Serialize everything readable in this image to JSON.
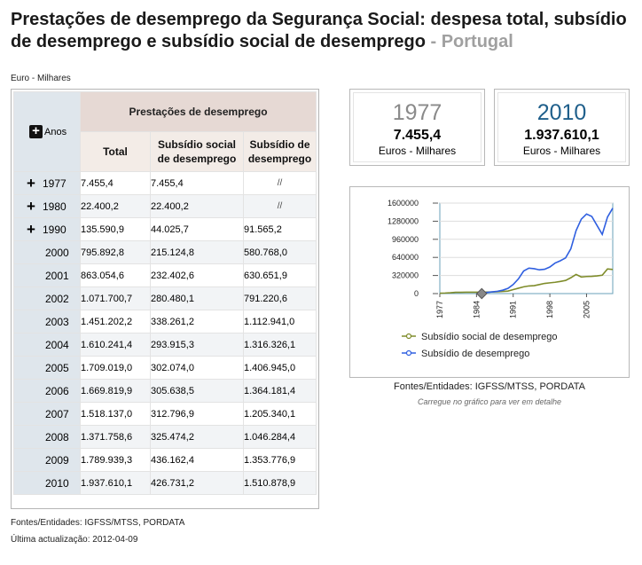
{
  "header": {
    "title": "Prestações de desemprego da Segurança Social: despesa total, subsídio de desemprego e subsídio social de desemprego",
    "separator": " - ",
    "country": "Portugal"
  },
  "unit_note": "Euro - Milhares",
  "table": {
    "years_header": "Anos",
    "group_header": "Prestações de desemprego",
    "columns": [
      "Total",
      "Subsídio social de desemprego",
      "Subsídio de desemprego"
    ],
    "rows": [
      {
        "year": "1977",
        "expandable": true,
        "total": "7.455,4",
        "social": "7.455,4",
        "subsidio": "//"
      },
      {
        "year": "1980",
        "expandable": true,
        "total": "22.400,2",
        "social": "22.400,2",
        "subsidio": "//"
      },
      {
        "year": "1990",
        "expandable": true,
        "total": "135.590,9",
        "social": "44.025,7",
        "subsidio": "91.565,2"
      },
      {
        "year": "2000",
        "expandable": false,
        "total": "795.892,8",
        "social": "215.124,8",
        "subsidio": "580.768,0"
      },
      {
        "year": "2001",
        "expandable": false,
        "total": "863.054,6",
        "social": "232.402,6",
        "subsidio": "630.651,9"
      },
      {
        "year": "2002",
        "expandable": false,
        "total": "1.071.700,7",
        "social": "280.480,1",
        "subsidio": "791.220,6"
      },
      {
        "year": "2003",
        "expandable": false,
        "total": "1.451.202,2",
        "social": "338.261,2",
        "subsidio": "1.112.941,0"
      },
      {
        "year": "2004",
        "expandable": false,
        "total": "1.610.241,4",
        "social": "293.915,3",
        "subsidio": "1.316.326,1"
      },
      {
        "year": "2005",
        "expandable": false,
        "total": "1.709.019,0",
        "social": "302.074,0",
        "subsidio": "1.406.945,0"
      },
      {
        "year": "2006",
        "expandable": false,
        "total": "1.669.819,9",
        "social": "305.638,5",
        "subsidio": "1.364.181,4"
      },
      {
        "year": "2007",
        "expandable": false,
        "total": "1.518.137,0",
        "social": "312.796,9",
        "subsidio": "1.205.340,1"
      },
      {
        "year": "2008",
        "expandable": false,
        "total": "1.371.758,6",
        "social": "325.474,2",
        "subsidio": "1.046.284,4"
      },
      {
        "year": "2009",
        "expandable": false,
        "total": "1.789.939,3",
        "social": "436.162,4",
        "subsidio": "1.353.776,9"
      },
      {
        "year": "2010",
        "expandable": false,
        "total": "1.937.610,1",
        "social": "426.731,2",
        "subsidio": "1.510.878,9"
      }
    ]
  },
  "footer": {
    "sources": "Fontes/Entidades: IGFSS/MTSS, PORDATA",
    "updated": "Última actualização: 2012-04-09"
  },
  "kpis": [
    {
      "year": "1977",
      "value": "7.455,4",
      "unit": "Euros - Milhares"
    },
    {
      "year": "2010",
      "value": "1.937.610,1",
      "unit": "Euros - Milhares"
    }
  ],
  "chart_sources": "Fontes/Entidades: IGFSS/MTSS, PORDATA",
  "chart_hint": "Carregue no gráfico para ver em detalhe",
  "colors": {
    "kpi_start_year": "#8a8a8a",
    "kpi_end_year": "#1f5f8b",
    "series_social": "#7f8c2a",
    "series_subsidio": "#2f5fe0",
    "plot_border": "#6aa0b8",
    "grid": "#dddddd"
  },
  "chart_data": {
    "type": "line",
    "x": [
      1977,
      1978,
      1979,
      1980,
      1981,
      1982,
      1983,
      1984,
      1985,
      1986,
      1987,
      1988,
      1989,
      1990,
      1991,
      1992,
      1993,
      1994,
      1995,
      1996,
      1997,
      1998,
      1999,
      2000,
      2001,
      2002,
      2003,
      2004,
      2005,
      2006,
      2007,
      2008,
      2009,
      2010
    ],
    "series": [
      {
        "name": "Subsídio social de desemprego",
        "values": [
          7455,
          10000,
          15000,
          22400,
          23000,
          24000,
          25000,
          24000,
          25000,
          26000,
          28000,
          32000,
          38000,
          44026,
          70000,
          95000,
          120000,
          135000,
          140000,
          160000,
          180000,
          190000,
          200000,
          215125,
          232403,
          280480,
          338261,
          293915,
          302074,
          305639,
          312797,
          325474,
          436162,
          426731
        ]
      },
      {
        "name": "Subsídio de desemprego",
        "values": [
          null,
          null,
          null,
          null,
          null,
          null,
          null,
          0,
          10000,
          20000,
          30000,
          40000,
          60000,
          91565,
          160000,
          260000,
          400000,
          450000,
          440000,
          420000,
          430000,
          470000,
          540000,
          580768,
          630652,
          791221,
          1112941,
          1316326,
          1406945,
          1364181,
          1205340,
          1046284,
          1353777,
          1510879
        ]
      }
    ],
    "x_ticks": [
      "1977",
      "1984",
      "1991",
      "1998",
      "2005"
    ],
    "y_ticks": [
      "0",
      "320000",
      "640000",
      "960000",
      "1280000",
      "1600000"
    ],
    "ylim": [
      0,
      1600000
    ],
    "xlim": [
      1977,
      2010
    ],
    "grid": true,
    "legend": "bottom"
  }
}
